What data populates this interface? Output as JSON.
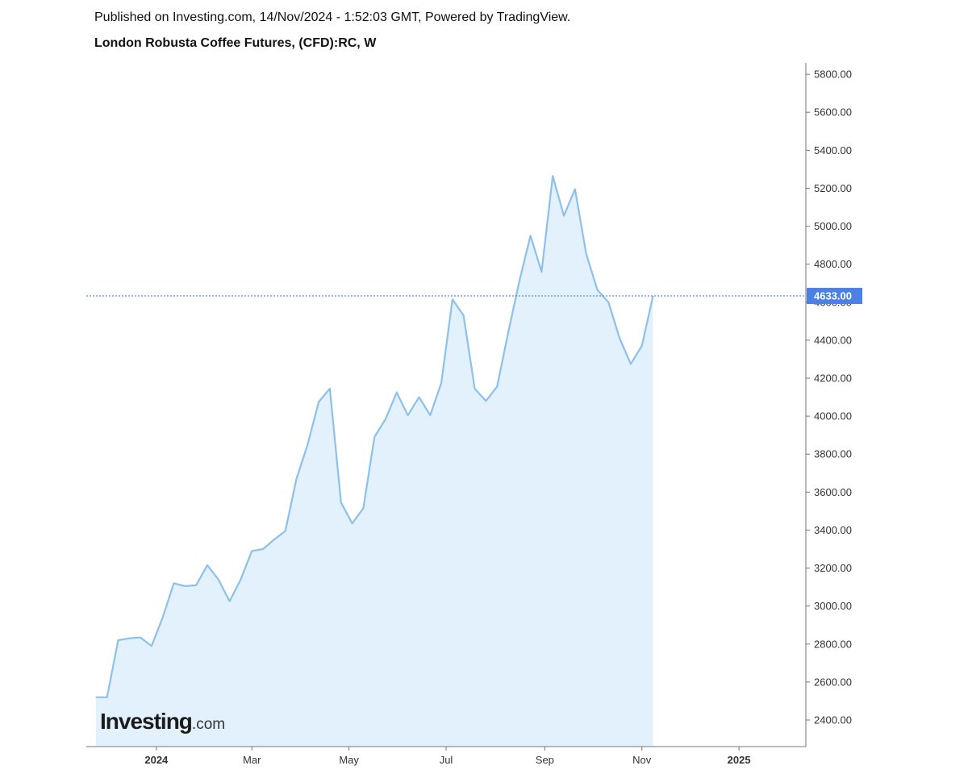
{
  "header": {
    "published": "Published on Investing.com, 14/Nov/2024 - 1:52:03 GMT, Powered by TradingView.",
    "title": "London Robusta Coffee Futures, (CFD):RC, W"
  },
  "logo": {
    "brand": "Investing",
    "suffix": ".com"
  },
  "colors": {
    "line": "#8ec0ec",
    "fill": "#e2f1fb",
    "axis": "#777777",
    "tick_text": "#333333",
    "last_price_bg": "#4a80e8",
    "last_price_line": "#3a6fd8"
  },
  "chart_data": {
    "type": "area",
    "title": "London Robusta Coffee Futures, (CFD):RC, W",
    "interval": "W",
    "ylim": [
      2260,
      5860
    ],
    "xlim": [
      "2023-11-18",
      "2025-02-12"
    ],
    "grid": false,
    "y_ticks": [
      2400,
      2600,
      2800,
      3000,
      3200,
      3400,
      3600,
      3800,
      4000,
      4200,
      4400,
      4600,
      4800,
      5000,
      5200,
      5400,
      5600,
      5800
    ],
    "y_tick_labels": [
      "2400.00",
      "2600.00",
      "2800.00",
      "3000.00",
      "3200.00",
      "3400.00",
      "3600.00",
      "3800.00",
      "4000.00",
      "4200.00",
      "4400.00",
      "4600.00",
      "4800.00",
      "5000.00",
      "5200.00",
      "5400.00",
      "5600.00",
      "5800.00"
    ],
    "x_ticks": [
      {
        "date": "2024-01-01",
        "label": "2024",
        "bold": true
      },
      {
        "date": "2024-03-01",
        "label": "Mar",
        "bold": false
      },
      {
        "date": "2024-05-01",
        "label": "May",
        "bold": false
      },
      {
        "date": "2024-07-01",
        "label": "Jul",
        "bold": false
      },
      {
        "date": "2024-09-01",
        "label": "Sep",
        "bold": false
      },
      {
        "date": "2024-11-01",
        "label": "Nov",
        "bold": false
      },
      {
        "date": "2025-01-01",
        "label": "2025",
        "bold": true
      }
    ],
    "last_price": 4633,
    "last_price_label": "4633.00",
    "series": [
      {
        "x": [
          "2023-11-24",
          "2023-12-01",
          "2023-12-08",
          "2023-12-15",
          "2023-12-22",
          "2023-12-29",
          "2024-01-05",
          "2024-01-12",
          "2024-01-19",
          "2024-01-26",
          "2024-02-02",
          "2024-02-09",
          "2024-02-16",
          "2024-02-23",
          "2024-03-01",
          "2024-03-08",
          "2024-03-15",
          "2024-03-22",
          "2024-03-29",
          "2024-04-05",
          "2024-04-12",
          "2024-04-19",
          "2024-04-26",
          "2024-05-03",
          "2024-05-10",
          "2024-05-17",
          "2024-05-24",
          "2024-05-31",
          "2024-06-07",
          "2024-06-14",
          "2024-06-21",
          "2024-06-28",
          "2024-07-05",
          "2024-07-12",
          "2024-07-19",
          "2024-07-26",
          "2024-08-02",
          "2024-08-09",
          "2024-08-16",
          "2024-08-23",
          "2024-08-30",
          "2024-09-06",
          "2024-09-13",
          "2024-09-20",
          "2024-09-27",
          "2024-10-04",
          "2024-10-11",
          "2024-10-18",
          "2024-10-25",
          "2024-11-01",
          "2024-11-08"
        ],
        "values": [
          2520,
          2520,
          2820,
          2830,
          2835,
          2790,
          2940,
          3120,
          3105,
          3110,
          3215,
          3140,
          3025,
          3140,
          3290,
          3300,
          3350,
          3395,
          3670,
          3850,
          4075,
          4145,
          3545,
          3435,
          3515,
          3890,
          3985,
          4125,
          4005,
          4100,
          4005,
          4175,
          4615,
          4530,
          4145,
          4080,
          4155,
          4440,
          4710,
          4950,
          4760,
          5265,
          5055,
          5195,
          4855,
          4665,
          4600,
          4410,
          4275,
          4370,
          4633
        ]
      }
    ]
  }
}
